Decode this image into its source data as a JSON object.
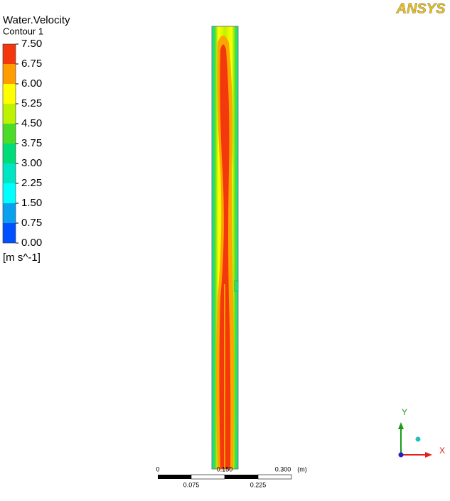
{
  "logo": "ANSYS",
  "legend": {
    "title": "Water.Velocity",
    "subtitle": "Contour 1",
    "labels": [
      "7.50",
      "6.75",
      "6.00",
      "5.25",
      "4.50",
      "3.75",
      "3.00",
      "2.25",
      "1.50",
      "0.75",
      "0.00"
    ],
    "colors": [
      "#f2380c",
      "#ff9c00",
      "#ffff00",
      "#bdf200",
      "#4cdc28",
      "#00dc78",
      "#00e6c4",
      "#00ffff",
      "#0aa0f0",
      "#0050ff"
    ],
    "unit": "[m s^-1]"
  },
  "scale_bar": {
    "top_labels": [
      "0",
      "0.150",
      "0.300"
    ],
    "unit": "(m)",
    "bottom_labels": [
      "0.075",
      "0.225"
    ]
  },
  "axes": {
    "y": "Y",
    "x": "X"
  }
}
